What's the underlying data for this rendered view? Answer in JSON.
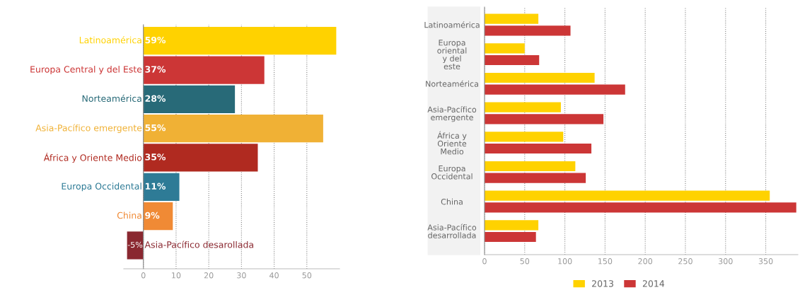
{
  "chart_data": [
    {
      "type": "bar",
      "orientation": "horizontal",
      "categories": [
        "Latinoamérica",
        "Europa Central y del Este",
        "Norteamérica",
        "Asia-Pacífico emergente",
        "África y Oriente Medio",
        "Europa Occidental",
        "China",
        "Asia-Pacífico desarollada"
      ],
      "values": [
        59,
        37,
        28,
        55,
        35,
        11,
        9,
        -5
      ],
      "value_labels": [
        "59%",
        "37%",
        "28%",
        "55%",
        "35%",
        "11%",
        "9%",
        "-5%"
      ],
      "colors": [
        "#ffd200",
        "#cc3636",
        "#286a78",
        "#f0b135",
        "#b02a20",
        "#2e7b96",
        "#f08a35",
        "#8a2830"
      ],
      "xlim": [
        -6,
        60
      ],
      "xticks": [
        0,
        10,
        20,
        30,
        40,
        50
      ],
      "grid": "x"
    },
    {
      "type": "bar",
      "orientation": "horizontal",
      "categories": [
        "Latinoamérica",
        "Europa\noriental\ny del\neste",
        "Norteamérica",
        "Asia-Pacífico\nemergente",
        "África y\nOriente\nMedio",
        "Europa\nOccidental",
        "China",
        "Asia-Pacífico\ndesarrollada"
      ],
      "series": [
        {
          "name": "2013",
          "color": "#ffd200",
          "values": [
            67,
            50,
            137,
            95,
            98,
            113,
            355,
            67
          ]
        },
        {
          "name": "2014",
          "color": "#cc3636",
          "values": [
            107,
            68,
            175,
            148,
            133,
            126,
            388,
            64
          ]
        }
      ],
      "xlim": [
        0,
        390
      ],
      "xticks": [
        0,
        50,
        100,
        150,
        200,
        250,
        300,
        350
      ],
      "grid": "x",
      "legend": "bottom"
    }
  ]
}
